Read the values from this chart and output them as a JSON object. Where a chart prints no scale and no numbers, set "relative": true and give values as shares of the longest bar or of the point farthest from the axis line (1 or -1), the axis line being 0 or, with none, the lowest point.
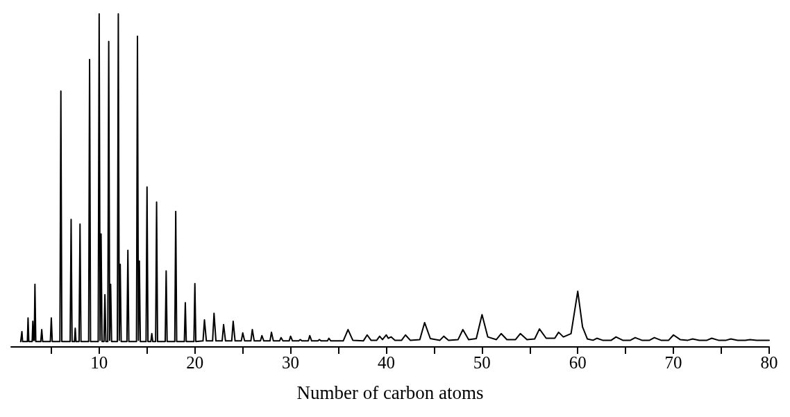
{
  "chart_data": {
    "type": "line",
    "relative": true,
    "xlabel": "Number of carbon atoms",
    "xlim": [
      0.8,
      80
    ],
    "xticks": [
      {
        "value": 5,
        "label": null
      },
      10,
      {
        "value": 15,
        "label": null
      },
      20,
      {
        "value": 25,
        "label": null
      },
      30,
      {
        "value": 35,
        "label": null
      },
      40,
      {
        "value": 45,
        "label": null
      },
      50,
      {
        "value": 55,
        "label": null
      },
      60,
      {
        "value": 65,
        "label": null
      },
      70,
      {
        "value": 75,
        "label": null
      },
      80
    ],
    "marker": "none",
    "line_style": "solid",
    "grid": false,
    "series": [
      {
        "color": "#000000",
        "x": [
          1.8,
          1.93,
          2.0,
          2.5,
          2.57,
          2.65,
          3.0,
          3.07,
          3.15,
          3.22,
          3.29,
          3.38,
          3.9,
          4.0,
          4.1,
          4.9,
          5.0,
          5.1,
          5.9,
          6.0,
          6.1,
          6.97,
          7.07,
          7.17,
          7.42,
          7.5,
          7.58,
          7.9,
          8.0,
          8.1,
          8.9,
          9.0,
          9.1,
          9.9,
          10.0,
          10.1,
          10.2,
          10.3,
          10.5,
          10.6,
          10.7,
          10.9,
          11.0,
          11.1,
          11.2,
          11.3,
          11.9,
          12.0,
          12.1,
          12.2,
          12.3,
          12.9,
          13.0,
          13.1,
          13.9,
          14.0,
          14.1,
          14.2,
          14.3,
          14.9,
          15.0,
          15.1,
          15.4,
          15.5,
          15.6,
          15.9,
          16.0,
          16.1,
          16.9,
          17.0,
          17.1,
          17.9,
          18.0,
          18.1,
          18.9,
          19.0,
          19.1,
          19.9,
          20.0,
          20.1,
          20.85,
          21,
          21.2,
          21.85,
          22,
          22.2,
          22.85,
          23,
          23.2,
          23.85,
          24,
          24.2,
          24.85,
          25,
          25.2,
          25.85,
          26,
          26.2,
          26.85,
          27,
          27.2,
          27.85,
          28,
          28.2,
          28.85,
          29,
          29.2,
          29.85,
          30,
          30.2,
          30.85,
          31,
          31.2,
          31.85,
          32,
          32.2,
          32.85,
          33,
          33.2,
          33.85,
          34,
          34.2,
          35.5,
          36,
          36.5,
          37.6,
          38,
          38.4,
          39,
          39.3,
          39.6,
          40,
          40.2,
          40.5,
          40.9,
          41.6,
          42,
          42.5,
          43.5,
          44,
          44.6,
          45.6,
          46,
          46.5,
          47.5,
          48,
          48.6,
          49.4,
          50,
          50.6,
          51.5,
          52,
          52.6,
          53.5,
          54,
          54.7,
          55.5,
          56,
          56.7,
          57.6,
          58,
          58.5,
          59.3,
          60,
          60.5,
          61,
          61.6,
          62,
          62.6,
          63.5,
          64,
          64.7,
          65.5,
          66,
          66.7,
          67.5,
          68,
          68.7,
          69.5,
          70,
          70.7,
          71.5,
          72,
          72.7,
          73.5,
          74,
          74.7,
          75.5,
          76,
          76.7,
          77.5,
          78,
          78.7,
          80
        ],
        "values": [
          0.016,
          0.046,
          0.016,
          0.016,
          0.087,
          0.016,
          0.016,
          0.077,
          0.02,
          0.02,
          0.188,
          0.016,
          0.016,
          0.052,
          0.016,
          0.016,
          0.087,
          0.016,
          0.016,
          0.768,
          0.016,
          0.016,
          0.383,
          0.016,
          0.016,
          0.056,
          0.016,
          0.016,
          0.369,
          0.016,
          0.016,
          0.863,
          0.016,
          0.016,
          1.0,
          0.02,
          0.339,
          0.016,
          0.016,
          0.157,
          0.016,
          0.016,
          0.917,
          0.02,
          0.188,
          0.016,
          0.016,
          1.0,
          0.02,
          0.248,
          0.016,
          0.016,
          0.29,
          0.016,
          0.016,
          0.933,
          0.02,
          0.258,
          0.016,
          0.016,
          0.48,
          0.016,
          0.016,
          0.04,
          0.016,
          0.016,
          0.435,
          0.016,
          0.016,
          0.228,
          0.016,
          0.016,
          0.407,
          0.016,
          0.016,
          0.133,
          0.016,
          0.016,
          0.19,
          0.016,
          0.018,
          0.081,
          0.018,
          0.018,
          0.101,
          0.018,
          0.018,
          0.067,
          0.018,
          0.018,
          0.077,
          0.018,
          0.018,
          0.042,
          0.018,
          0.018,
          0.052,
          0.018,
          0.018,
          0.034,
          0.018,
          0.018,
          0.044,
          0.018,
          0.018,
          0.028,
          0.018,
          0.018,
          0.032,
          0.018,
          0.018,
          0.022,
          0.018,
          0.018,
          0.034,
          0.018,
          0.018,
          0.022,
          0.018,
          0.018,
          0.026,
          0.018,
          0.018,
          0.052,
          0.02,
          0.018,
          0.036,
          0.02,
          0.02,
          0.032,
          0.022,
          0.036,
          0.026,
          0.03,
          0.02,
          0.02,
          0.036,
          0.02,
          0.022,
          0.073,
          0.025,
          0.02,
          0.032,
          0.02,
          0.022,
          0.052,
          0.022,
          0.025,
          0.097,
          0.03,
          0.022,
          0.04,
          0.022,
          0.022,
          0.04,
          0.022,
          0.024,
          0.054,
          0.026,
          0.026,
          0.044,
          0.03,
          0.04,
          0.167,
          0.06,
          0.024,
          0.02,
          0.026,
          0.02,
          0.02,
          0.03,
          0.02,
          0.02,
          0.028,
          0.02,
          0.02,
          0.028,
          0.02,
          0.02,
          0.036,
          0.022,
          0.02,
          0.024,
          0.02,
          0.02,
          0.026,
          0.02,
          0.02,
          0.024,
          0.02,
          0.02,
          0.022,
          0.02,
          0.02
        ]
      }
    ]
  }
}
